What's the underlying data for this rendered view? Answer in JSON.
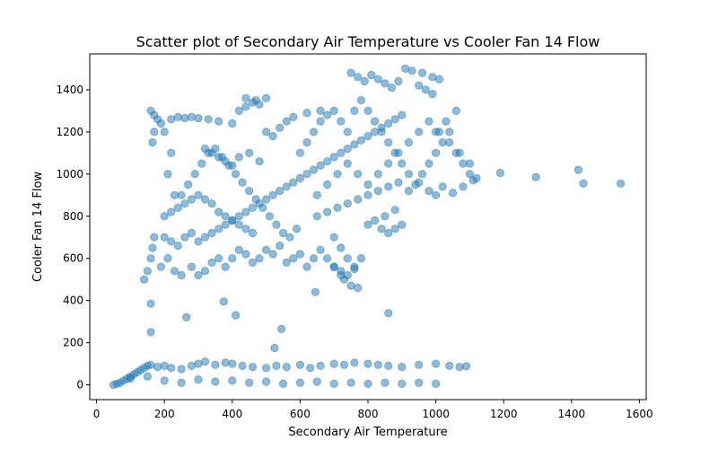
{
  "chart_data": {
    "type": "scatter",
    "title": "Scatter plot of Secondary Air Temperature vs Cooler Fan 14 Flow",
    "xlabel": "Secondary Air Temperature",
    "ylabel": "Cooler Fan 14 Flow",
    "xlim": [
      -20,
      1620
    ],
    "ylim": [
      -70,
      1570
    ],
    "xticks": [
      0,
      200,
      400,
      600,
      800,
      1000,
      1200,
      1400,
      1600
    ],
    "yticks": [
      0,
      200,
      400,
      600,
      800,
      1000,
      1200,
      1400
    ],
    "grid": false,
    "legend": "none",
    "color": "#1f77b4",
    "alpha": 0.5,
    "series": [
      {
        "points": [
          [
            50,
            0
          ],
          [
            60,
            5
          ],
          [
            70,
            10
          ],
          [
            80,
            20
          ],
          [
            90,
            30
          ],
          [
            100,
            40
          ],
          [
            110,
            50
          ],
          [
            120,
            60
          ],
          [
            130,
            70
          ],
          [
            140,
            80
          ],
          [
            150,
            90
          ],
          [
            160,
            95
          ],
          [
            180,
            85
          ],
          [
            200,
            90
          ],
          [
            220,
            80
          ],
          [
            250,
            75
          ],
          [
            280,
            90
          ],
          [
            300,
            100
          ],
          [
            320,
            110
          ],
          [
            350,
            95
          ],
          [
            380,
            105
          ],
          [
            400,
            100
          ],
          [
            430,
            90
          ],
          [
            460,
            85
          ],
          [
            500,
            80
          ],
          [
            530,
            90
          ],
          [
            560,
            85
          ],
          [
            600,
            95
          ],
          [
            630,
            80
          ],
          [
            660,
            90
          ],
          [
            700,
            100
          ],
          [
            730,
            95
          ],
          [
            760,
            105
          ],
          [
            800,
            100
          ],
          [
            830,
            95
          ],
          [
            860,
            90
          ],
          [
            900,
            85
          ],
          [
            950,
            95
          ],
          [
            1000,
            100
          ],
          [
            1040,
            90
          ],
          [
            1070,
            85
          ],
          [
            1090,
            88
          ],
          [
            100,
            30
          ],
          [
            150,
            40
          ],
          [
            200,
            20
          ],
          [
            250,
            10
          ],
          [
            300,
            25
          ],
          [
            350,
            15
          ],
          [
            400,
            20
          ],
          [
            450,
            10
          ],
          [
            500,
            15
          ],
          [
            550,
            5
          ],
          [
            600,
            10
          ],
          [
            650,
            15
          ],
          [
            700,
            5
          ],
          [
            750,
            10
          ],
          [
            800,
            5
          ],
          [
            850,
            10
          ],
          [
            900,
            5
          ],
          [
            950,
            10
          ],
          [
            1000,
            5
          ],
          [
            140,
            500
          ],
          [
            150,
            540
          ],
          [
            160,
            600
          ],
          [
            165,
            650
          ],
          [
            170,
            700
          ],
          [
            190,
            560
          ],
          [
            210,
            600
          ],
          [
            230,
            540
          ],
          [
            250,
            520
          ],
          [
            280,
            560
          ],
          [
            300,
            520
          ],
          [
            320,
            540
          ],
          [
            340,
            580
          ],
          [
            360,
            600
          ],
          [
            380,
            560
          ],
          [
            400,
            600
          ],
          [
            420,
            640
          ],
          [
            440,
            620
          ],
          [
            460,
            580
          ],
          [
            480,
            600
          ],
          [
            500,
            640
          ],
          [
            520,
            620
          ],
          [
            540,
            660
          ],
          [
            560,
            580
          ],
          [
            580,
            600
          ],
          [
            600,
            620
          ],
          [
            620,
            560
          ],
          [
            640,
            600
          ],
          [
            660,
            640
          ],
          [
            680,
            600
          ],
          [
            700,
            560
          ],
          [
            720,
            540
          ],
          [
            740,
            520
          ],
          [
            760,
            560
          ],
          [
            780,
            600
          ],
          [
            200,
            700
          ],
          [
            220,
            680
          ],
          [
            240,
            660
          ],
          [
            260,
            700
          ],
          [
            280,
            720
          ],
          [
            300,
            680
          ],
          [
            320,
            700
          ],
          [
            340,
            720
          ],
          [
            360,
            740
          ],
          [
            380,
            760
          ],
          [
            400,
            780
          ],
          [
            420,
            800
          ],
          [
            440,
            820
          ],
          [
            460,
            840
          ],
          [
            480,
            860
          ],
          [
            500,
            880
          ],
          [
            520,
            900
          ],
          [
            540,
            920
          ],
          [
            560,
            940
          ],
          [
            580,
            960
          ],
          [
            600,
            980
          ],
          [
            620,
            1000
          ],
          [
            640,
            1020
          ],
          [
            660,
            1040
          ],
          [
            680,
            1060
          ],
          [
            700,
            1080
          ],
          [
            720,
            1100
          ],
          [
            740,
            1120
          ],
          [
            760,
            1140
          ],
          [
            780,
            1160
          ],
          [
            800,
            1180
          ],
          [
            820,
            1200
          ],
          [
            840,
            1220
          ],
          [
            860,
            1240
          ],
          [
            880,
            1260
          ],
          [
            900,
            1280
          ],
          [
            250,
            900
          ],
          [
            270,
            950
          ],
          [
            290,
            1000
          ],
          [
            310,
            1050
          ],
          [
            330,
            1100
          ],
          [
            350,
            1120
          ],
          [
            370,
            1080
          ],
          [
            390,
            1040
          ],
          [
            410,
            1000
          ],
          [
            430,
            960
          ],
          [
            450,
            920
          ],
          [
            470,
            880
          ],
          [
            490,
            840
          ],
          [
            510,
            800
          ],
          [
            530,
            760
          ],
          [
            550,
            720
          ],
          [
            570,
            700
          ],
          [
            590,
            740
          ],
          [
            600,
            1100
          ],
          [
            620,
            1150
          ],
          [
            640,
            1200
          ],
          [
            660,
            1250
          ],
          [
            680,
            1280
          ],
          [
            700,
            1300
          ],
          [
            720,
            1250
          ],
          [
            740,
            1200
          ],
          [
            760,
            1300
          ],
          [
            780,
            1350
          ],
          [
            800,
            1300
          ],
          [
            820,
            1250
          ],
          [
            840,
            1200
          ],
          [
            860,
            1150
          ],
          [
            880,
            1100
          ],
          [
            900,
            1050
          ],
          [
            920,
            1000
          ],
          [
            940,
            950
          ],
          [
            960,
            1000
          ],
          [
            980,
            1050
          ],
          [
            1000,
            1100
          ],
          [
            1020,
            1150
          ],
          [
            1040,
            1200
          ],
          [
            1060,
            1100
          ],
          [
            1080,
            1050
          ],
          [
            1100,
            1000
          ],
          [
            1120,
            980
          ],
          [
            1060,
            1300
          ],
          [
            1030,
            1250
          ],
          [
            1000,
            1200
          ],
          [
            750,
            1480
          ],
          [
            770,
            1460
          ],
          [
            790,
            1440
          ],
          [
            810,
            1470
          ],
          [
            830,
            1450
          ],
          [
            850,
            1430
          ],
          [
            870,
            1410
          ],
          [
            890,
            1440
          ],
          [
            910,
            1500
          ],
          [
            930,
            1490
          ],
          [
            960,
            1480
          ],
          [
            990,
            1460
          ],
          [
            1010,
            1450
          ],
          [
            950,
            1420
          ],
          [
            970,
            1400
          ],
          [
            990,
            1380
          ],
          [
            160,
            1300
          ],
          [
            170,
            1280
          ],
          [
            180,
            1260
          ],
          [
            190,
            1240
          ],
          [
            200,
            1200
          ],
          [
            170,
            1200
          ],
          [
            165,
            1150
          ],
          [
            220,
            1260
          ],
          [
            240,
            1270
          ],
          [
            260,
            1265
          ],
          [
            280,
            1270
          ],
          [
            300,
            1265
          ],
          [
            330,
            1260
          ],
          [
            360,
            1250
          ],
          [
            400,
            1240
          ],
          [
            420,
            1300
          ],
          [
            440,
            1320
          ],
          [
            460,
            1340
          ],
          [
            480,
            1330
          ],
          [
            440,
            1360
          ],
          [
            470,
            1350
          ],
          [
            500,
            1360
          ],
          [
            500,
            1200
          ],
          [
            520,
            1180
          ],
          [
            540,
            1220
          ],
          [
            560,
            1250
          ],
          [
            580,
            1270
          ],
          [
            620,
            1290
          ],
          [
            660,
            1300
          ],
          [
            320,
            1120
          ],
          [
            340,
            1100
          ],
          [
            360,
            1080
          ],
          [
            380,
            1060
          ],
          [
            400,
            1040
          ],
          [
            420,
            1080
          ],
          [
            450,
            1100
          ],
          [
            480,
            1060
          ],
          [
            300,
            900
          ],
          [
            320,
            880
          ],
          [
            340,
            860
          ],
          [
            360,
            820
          ],
          [
            380,
            800
          ],
          [
            400,
            780
          ],
          [
            420,
            760
          ],
          [
            440,
            740
          ],
          [
            460,
            720
          ],
          [
            200,
            800
          ],
          [
            220,
            820
          ],
          [
            240,
            840
          ],
          [
            260,
            860
          ],
          [
            280,
            880
          ],
          [
            230,
            900
          ],
          [
            210,
            1000
          ],
          [
            220,
            1100
          ],
          [
            650,
            800
          ],
          [
            680,
            820
          ],
          [
            710,
            840
          ],
          [
            740,
            860
          ],
          [
            770,
            880
          ],
          [
            800,
            900
          ],
          [
            830,
            920
          ],
          [
            860,
            940
          ],
          [
            890,
            960
          ],
          [
            650,
            900
          ],
          [
            680,
            950
          ],
          [
            710,
            1000
          ],
          [
            740,
            1050
          ],
          [
            770,
            1000
          ],
          [
            800,
            950
          ],
          [
            830,
            1000
          ],
          [
            860,
            1050
          ],
          [
            890,
            1100
          ],
          [
            920,
            1150
          ],
          [
            950,
            1200
          ],
          [
            980,
            1250
          ],
          [
            1010,
            1200
          ],
          [
            1040,
            1150
          ],
          [
            1070,
            1100
          ],
          [
            1100,
            1050
          ],
          [
            700,
            700
          ],
          [
            720,
            650
          ],
          [
            740,
            600
          ],
          [
            760,
            550
          ],
          [
            730,
            500
          ],
          [
            750,
            470
          ],
          [
            770,
            460
          ],
          [
            720,
            520
          ],
          [
            700,
            560
          ],
          [
            800,
            760
          ],
          [
            820,
            780
          ],
          [
            840,
            740
          ],
          [
            860,
            720
          ],
          [
            880,
            740
          ],
          [
            900,
            760
          ],
          [
            880,
            830
          ],
          [
            850,
            800
          ],
          [
            920,
            920
          ],
          [
            950,
            960
          ],
          [
            980,
            920
          ],
          [
            1000,
            900
          ],
          [
            1020,
            940
          ],
          [
            1050,
            910
          ],
          [
            1080,
            940
          ],
          [
            1110,
            970
          ],
          [
            1190,
            1005
          ],
          [
            1295,
            985
          ],
          [
            1420,
            1020
          ],
          [
            1435,
            955
          ],
          [
            1545,
            955
          ],
          [
            160,
            385
          ],
          [
            160,
            250
          ],
          [
            265,
            320
          ],
          [
            375,
            395
          ],
          [
            410,
            330
          ],
          [
            545,
            265
          ],
          [
            525,
            175
          ],
          [
            645,
            440
          ],
          [
            860,
            340
          ]
        ]
      }
    ]
  }
}
